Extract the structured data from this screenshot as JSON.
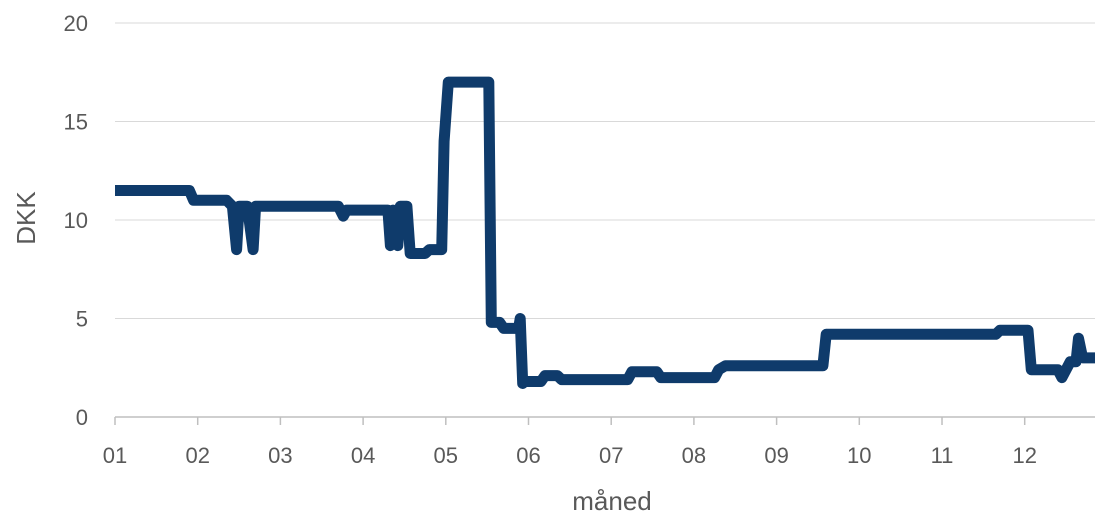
{
  "chart_data": {
    "type": "line",
    "xlabel": "måned",
    "ylabel": "DKK",
    "ylim": [
      0,
      20
    ],
    "yticks": [
      "0",
      "5",
      "10",
      "15",
      "20"
    ],
    "xlim": [
      1,
      12.85
    ],
    "xticks": [
      "01",
      "02",
      "03",
      "04",
      "05",
      "06",
      "07",
      "08",
      "09",
      "10",
      "11",
      "12"
    ],
    "grid": true,
    "legend": "none",
    "colors": {
      "line": "#0f3b6b",
      "grid": "#d9d9d9",
      "axis": "#bfbfbf",
      "text": "#595959"
    },
    "series": [
      {
        "x": [
          1.0,
          1.9,
          1.95,
          2.35,
          2.42,
          2.47,
          2.5,
          2.53,
          2.6,
          2.67,
          2.7,
          2.74,
          2.77,
          3.7,
          3.76,
          3.8,
          3.84,
          4.3,
          4.33,
          4.36,
          4.42,
          4.45,
          4.49,
          4.53,
          4.57,
          4.6,
          4.75,
          4.8,
          4.95,
          4.98,
          5.03,
          5.52,
          5.55,
          5.65,
          5.7,
          5.88,
          5.9,
          5.93,
          5.95,
          6.15,
          6.2,
          6.35,
          6.4,
          7.2,
          7.25,
          7.55,
          7.6,
          8.25,
          8.3,
          8.38,
          9.56,
          9.6,
          10.65,
          11.65,
          11.7,
          12.04,
          12.08,
          12.4,
          12.45,
          12.55,
          12.62,
          12.65,
          12.7,
          12.73,
          12.85
        ],
        "y": [
          11.5,
          11.5,
          11.0,
          11.0,
          10.7,
          8.5,
          10.7,
          10.7,
          10.7,
          8.5,
          10.7,
          10.7,
          10.7,
          10.7,
          10.2,
          10.5,
          10.5,
          10.5,
          8.7,
          10.5,
          8.7,
          10.7,
          10.7,
          10.7,
          8.3,
          8.3,
          8.3,
          8.5,
          8.5,
          14.0,
          17.0,
          17.0,
          4.8,
          4.8,
          4.5,
          4.5,
          5.0,
          1.7,
          1.8,
          1.8,
          2.1,
          2.1,
          1.9,
          1.9,
          2.3,
          2.3,
          2.0,
          2.0,
          2.4,
          2.6,
          2.6,
          4.2,
          4.2,
          4.2,
          4.4,
          4.4,
          2.4,
          2.4,
          2.0,
          2.8,
          2.8,
          4.0,
          3.0,
          3.0,
          3.0
        ]
      }
    ]
  }
}
